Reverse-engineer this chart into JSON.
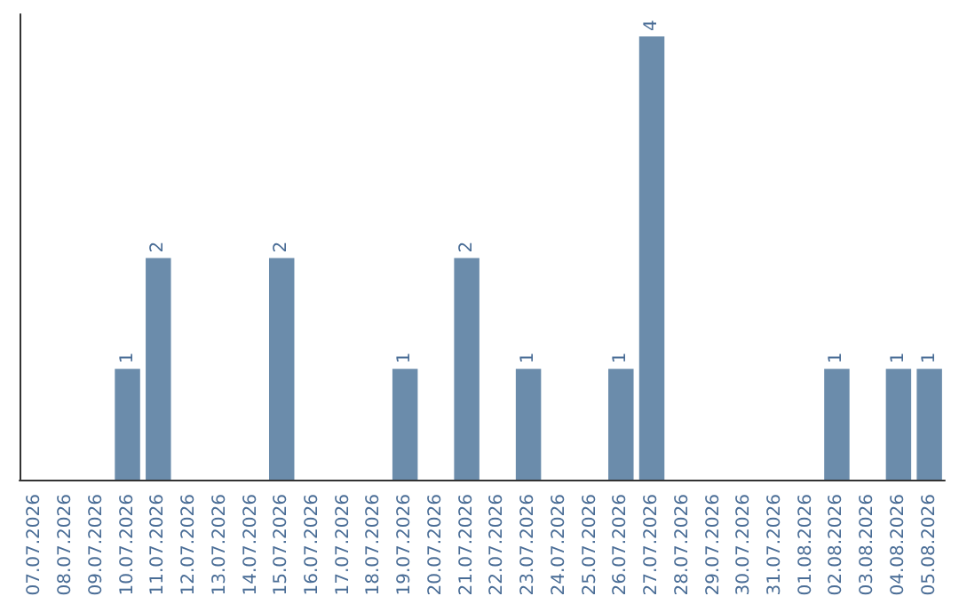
{
  "chart_data": {
    "type": "bar",
    "categories": [
      "07.07.2026",
      "08.07.2026",
      "09.07.2026",
      "10.07.2026",
      "11.07.2026",
      "12.07.2026",
      "13.07.2026",
      "14.07.2026",
      "15.07.2026",
      "16.07.2026",
      "17.07.2026",
      "18.07.2026",
      "19.07.2026",
      "20.07.2026",
      "21.07.2026",
      "22.07.2026",
      "23.07.2026",
      "24.07.2026",
      "25.07.2026",
      "26.07.2026",
      "27.07.2026",
      "28.07.2026",
      "29.07.2026",
      "30.07.2026",
      "31.07.2026",
      "01.08.2026",
      "02.08.2026",
      "03.08.2026",
      "04.08.2026",
      "05.08.2026"
    ],
    "values": [
      0,
      0,
      0,
      1,
      2,
      0,
      0,
      0,
      2,
      0,
      0,
      0,
      1,
      0,
      2,
      0,
      1,
      0,
      0,
      1,
      4,
      0,
      0,
      0,
      0,
      0,
      1,
      0,
      1,
      1
    ],
    "value_labels": [
      null,
      null,
      null,
      "1",
      "2",
      null,
      null,
      null,
      "2",
      null,
      null,
      null,
      "1",
      null,
      "2",
      null,
      "1",
      null,
      null,
      "1",
      "4",
      null,
      null,
      null,
      null,
      null,
      "1",
      null,
      "1",
      "1"
    ],
    "color": "#6b8cab",
    "grid": false,
    "tick_labels": "x"
  }
}
